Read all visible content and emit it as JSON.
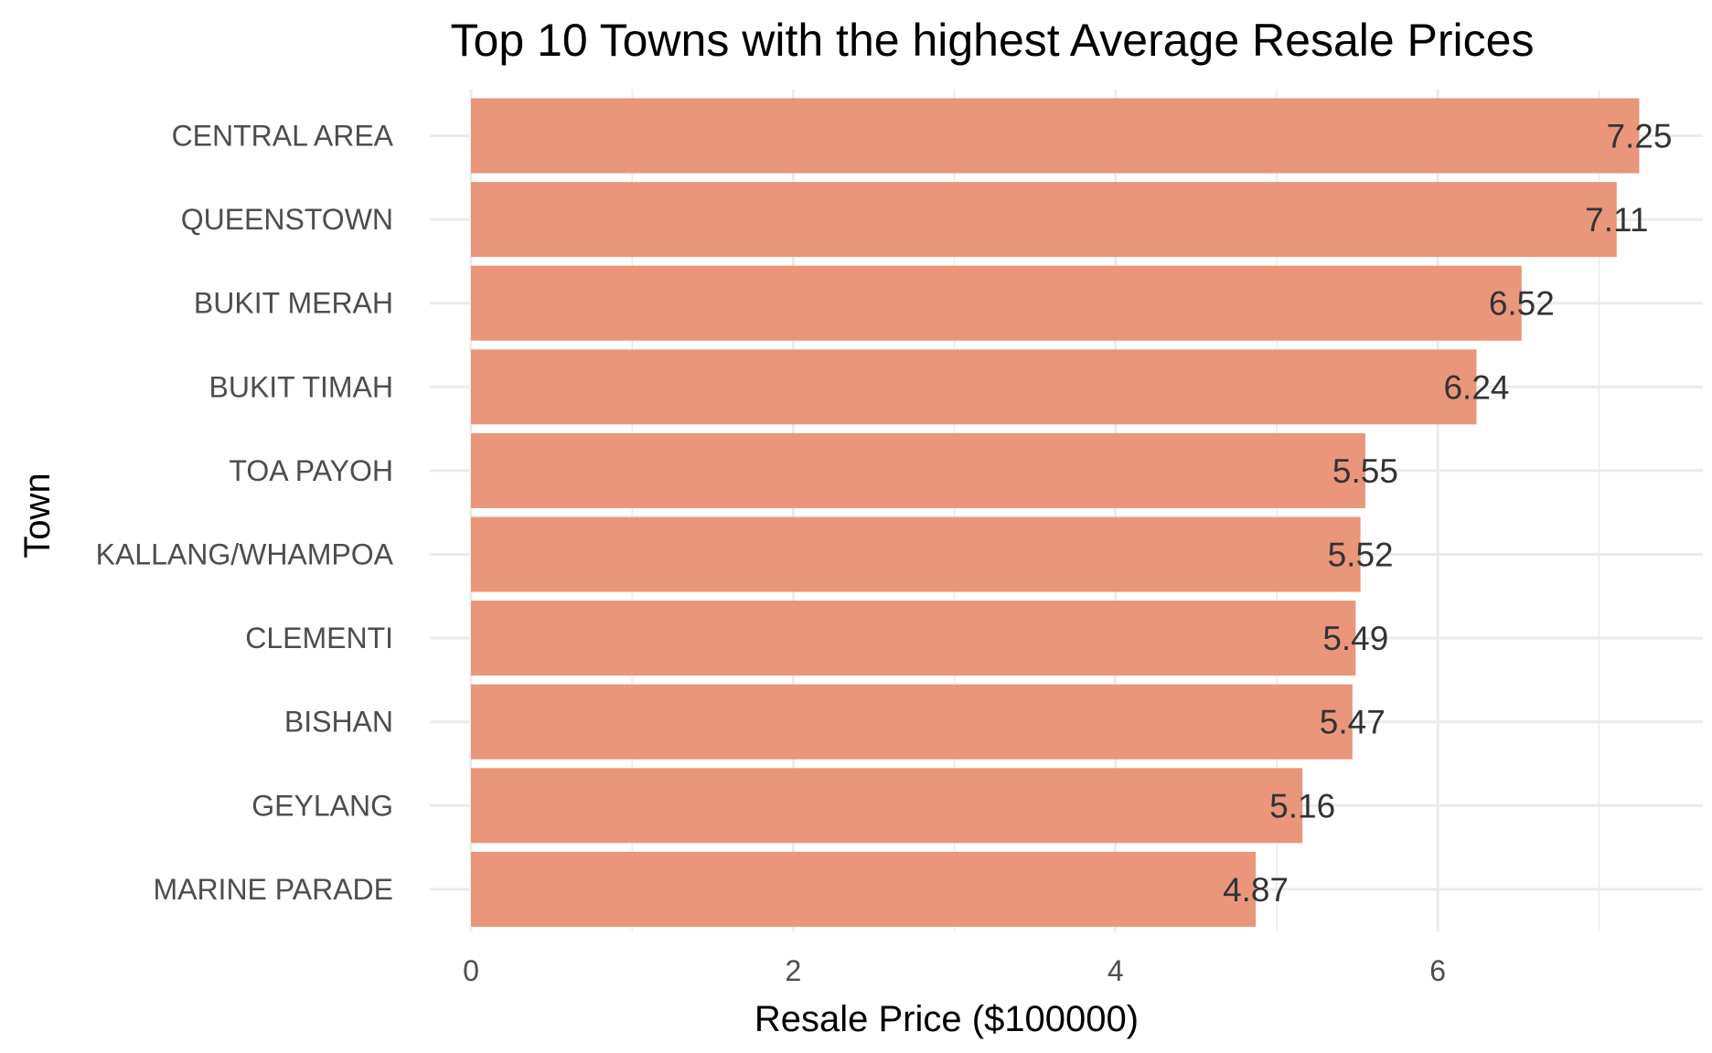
{
  "chart_data": {
    "type": "bar",
    "orientation": "horizontal",
    "title": "Top 10 Towns with the highest Average Resale Prices",
    "xlabel": "Resale Price ($100000)",
    "ylabel": "Town",
    "categories": [
      "CENTRAL AREA",
      "QUEENSTOWN",
      "BUKIT MERAH",
      "BUKIT TIMAH",
      "TOA PAYOH",
      "KALLANG/WHAMPOA",
      "CLEMENTI",
      "BISHAN",
      "GEYLANG",
      "MARINE PARADE"
    ],
    "values": [
      7.25,
      7.11,
      6.52,
      6.24,
      5.55,
      5.52,
      5.49,
      5.47,
      5.16,
      4.87
    ],
    "value_labels": [
      "7.25",
      "7.11",
      "6.52",
      "6.24",
      "5.55",
      "5.52",
      "5.49",
      "5.47",
      "5.16",
      "4.87"
    ],
    "x_ticks": [
      0,
      2,
      4,
      6
    ],
    "x_tick_labels": [
      "0",
      "2",
      "4",
      "6"
    ],
    "xlim": [
      0,
      7.5
    ],
    "grid": true,
    "legend": "none",
    "colors": {
      "bar": "#E9967A",
      "grid": "#EBEBEB",
      "tick_text": "#4D4D4D",
      "label_text": "#333333",
      "title_text": "#000000"
    }
  }
}
